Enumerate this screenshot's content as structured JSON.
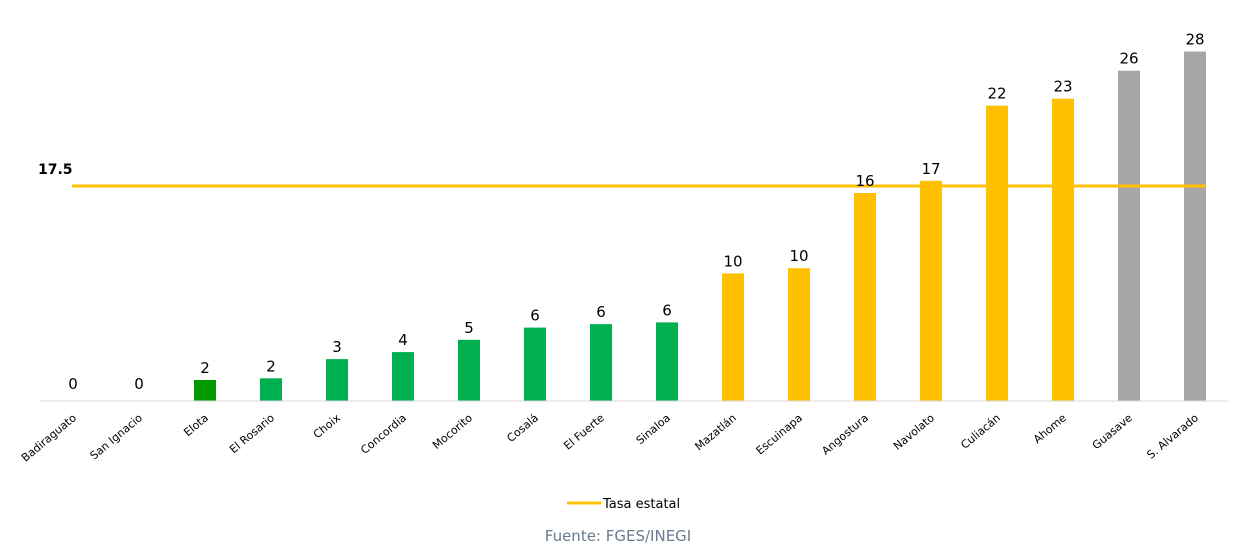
{
  "chart_data": {
    "type": "bar",
    "categories": [
      "Badiraguato",
      "San Ignacio",
      "Elota",
      "El Rosario",
      "Choix",
      "Concordia",
      "Mocorito",
      "Cosalá",
      "El Fuerte",
      "Sinaloa",
      "Mazatlán",
      "Escuinapa",
      "Angostura",
      "Navolato",
      "Culiacán",
      "Ahome",
      "Guasave",
      "S. Alvarado"
    ],
    "values": [
      0,
      0,
      1.2,
      1.3,
      2.4,
      2.8,
      3.5,
      4.2,
      4.4,
      4.5,
      7.3,
      7.6,
      11.9,
      12.6,
      16.9,
      17.3,
      18.9,
      20.0
    ],
    "labels": [
      "0",
      "0",
      "2",
      "2",
      "3",
      "4",
      "5",
      "6",
      "6",
      "6",
      "10",
      "10",
      "16",
      "17",
      "22",
      "23",
      "26",
      "28"
    ],
    "bar_colors": [
      "#00b050",
      "#00b050",
      "#009a00",
      "#00b050",
      "#00b050",
      "#00b050",
      "#00b050",
      "#00b050",
      "#00b050",
      "#00b050",
      "#ffc000",
      "#ffc000",
      "#ffc000",
      "#ffc000",
      "#ffc000",
      "#ffc000",
      "#a6a6a6",
      "#a6a6a6"
    ],
    "reference_line": {
      "value": 12.3,
      "label": "17.5",
      "name": "Tasa estatal",
      "color": "#ffc000"
    },
    "ylim": [
      0,
      21
    ],
    "grid": false,
    "legend_position": "bottom-center",
    "source": "Fuente: FGES/INEGI"
  }
}
